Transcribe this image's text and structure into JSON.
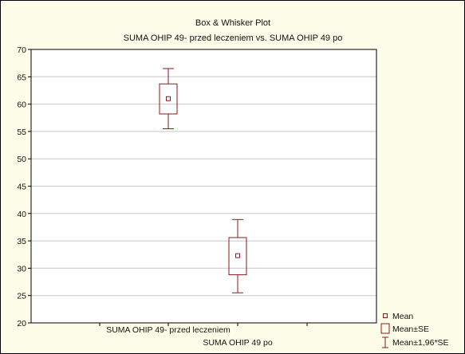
{
  "chart_data": {
    "type": "box",
    "title": "Box & Whisker Plot",
    "subtitle": "SUMA OHIP 49- przed leczeniem vs. SUMA OHIP 49 po",
    "xlabel": "",
    "ylabel": "",
    "ylim": [
      20,
      70
    ],
    "yticks": [
      "20",
      "25",
      "30",
      "35",
      "40",
      "45",
      "50",
      "55",
      "60",
      "65",
      "70"
    ],
    "grid": true,
    "categories": [
      "SUMA OHIP 49- przed leczeniem",
      "SUMA OHIP 49 po"
    ],
    "mean": [
      61.0,
      32.3
    ],
    "mean_minus_se": [
      58.2,
      28.8
    ],
    "mean_plus_se": [
      63.7,
      35.6
    ],
    "mean_minus_196se": [
      55.5,
      25.5
    ],
    "mean_plus_196se": [
      66.5,
      38.9
    ],
    "legend": [
      "Mean",
      "Mean±SE",
      "Mean±1,96*SE"
    ],
    "legend_position": "bottom-right",
    "colors": {
      "plot_bg": "#ffffff",
      "page_bg": "#fefde9",
      "mark": "#8b1a1a",
      "grid": "#c8c8c8",
      "axis": "#000000"
    }
  }
}
